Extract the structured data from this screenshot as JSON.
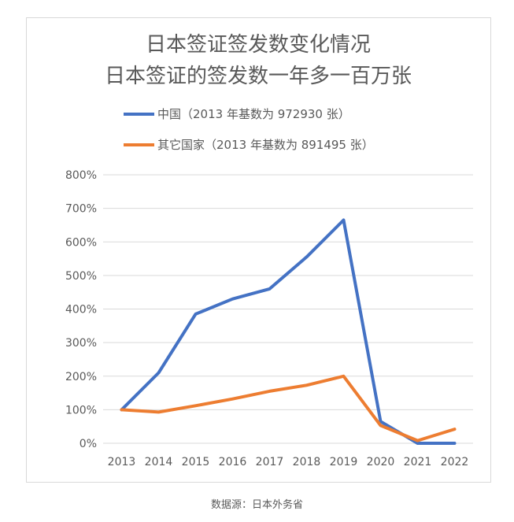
{
  "chart_data": {
    "type": "line",
    "title": "日本签证签发数变化情况",
    "subtitle": "日本签证的签发数一年多一百万张",
    "xlabel": "",
    "ylabel": "",
    "categories": [
      "2013",
      "2014",
      "2015",
      "2016",
      "2017",
      "2018",
      "2019",
      "2020",
      "2021",
      "2022"
    ],
    "ylim": [
      0,
      800
    ],
    "yticks": [
      0,
      100,
      200,
      300,
      400,
      500,
      600,
      700,
      800
    ],
    "ytick_labels": [
      "0%",
      "100%",
      "200%",
      "300%",
      "400%",
      "500%",
      "600%",
      "700%",
      "800%"
    ],
    "grid": true,
    "legend_position": "top",
    "series": [
      {
        "name": "中国（2013 年基数为 972930 张）",
        "color": "#4472c4",
        "values": [
          100,
          210,
          385,
          430,
          460,
          555,
          665,
          65,
          0,
          0
        ]
      },
      {
        "name": "其它国家（2013 年基数为 891495 张）",
        "color": "#ed7d31",
        "values": [
          100,
          93,
          112,
          132,
          155,
          173,
          200,
          53,
          8,
          42
        ]
      }
    ]
  },
  "source_note": "数据源：日本外务省"
}
